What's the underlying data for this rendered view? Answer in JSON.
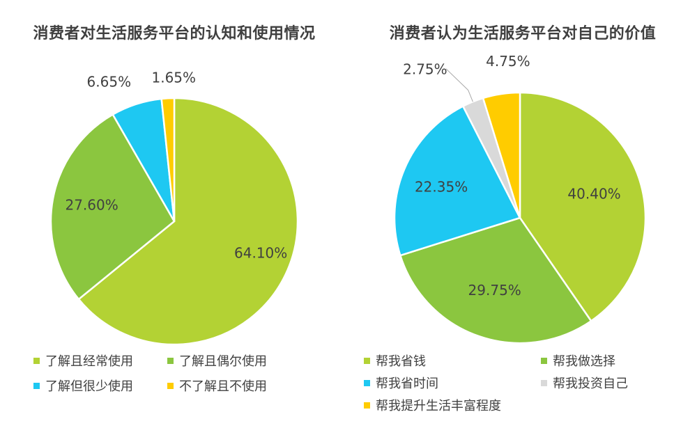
{
  "chart_data": [
    {
      "type": "pie",
      "title": "消费者对生活服务平台的认知和使用情况",
      "slices": [
        {
          "label": "了解且经常使用",
          "value": 64.1,
          "value_label": "64.10%",
          "color": "#b3d234"
        },
        {
          "label": "了解且偶尔使用",
          "value": 27.6,
          "value_label": "27.60%",
          "color": "#8bc63f"
        },
        {
          "label": "了解但很少使用",
          "value": 6.65,
          "value_label": "6.65%",
          "color": "#1ec8f2"
        },
        {
          "label": "不了解且不使用",
          "value": 1.65,
          "value_label": "1.65%",
          "color": "#ffcc00"
        }
      ],
      "legend_placement": "bottom"
    },
    {
      "type": "pie",
      "title": "消费者认为生活服务平台对自己的价值",
      "slices": [
        {
          "label": "帮我省钱",
          "value": 40.4,
          "value_label": "40.40%",
          "color": "#b3d234"
        },
        {
          "label": "帮我做选择",
          "value": 29.75,
          "value_label": "29.75%",
          "color": "#8bc63f"
        },
        {
          "label": "帮我省时间",
          "value": 22.35,
          "value_label": "22.35%",
          "color": "#1ec8f2"
        },
        {
          "label": "帮我投资自己",
          "value": 2.75,
          "value_label": "2.75%",
          "color": "#d9d9d9"
        },
        {
          "label": "帮我提升生活丰富程度",
          "value": 4.75,
          "value_label": "4.75%",
          "color": "#ffcc00"
        }
      ],
      "legend_placement": "bottom"
    }
  ]
}
